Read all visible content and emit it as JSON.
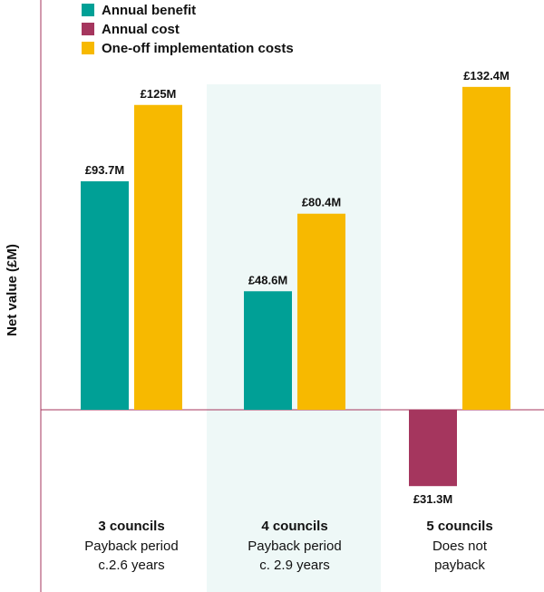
{
  "colors": {
    "annual_benefit": "#00a096",
    "annual_cost": "#a5365e",
    "one_off": "#f7b900",
    "highlight": "#eef8f7",
    "axis": "#a5365e"
  },
  "chart_data": {
    "type": "bar",
    "ylabel": "Net value (£M)",
    "ylim": [
      -60,
      150
    ],
    "grid": false,
    "legend_position": "top-left",
    "series": [
      {
        "name": "Annual benefit",
        "color_key": "annual_benefit"
      },
      {
        "name": "Annual cost",
        "color_key": "annual_cost"
      },
      {
        "name": "One-off implementation costs",
        "color_key": "one_off"
      }
    ],
    "groups": [
      {
        "title": "3 councils",
        "subtitle_lines": [
          "Payback period",
          "c.2.6 years"
        ],
        "highlighted": false,
        "bars": [
          {
            "series": 0,
            "value": 93.7,
            "label": "£93.7M"
          },
          {
            "series": 2,
            "value": 125,
            "label": "£125M"
          }
        ]
      },
      {
        "title": "4 councils",
        "subtitle_lines": [
          "Payback period",
          "c. 2.9 years"
        ],
        "highlighted": true,
        "bars": [
          {
            "series": 0,
            "value": 48.6,
            "label": "£48.6M"
          },
          {
            "series": 2,
            "value": 80.4,
            "label": "£80.4M"
          }
        ]
      },
      {
        "title": "5 councils",
        "subtitle_lines": [
          "Does not",
          "payback"
        ],
        "highlighted": false,
        "bars": [
          {
            "series": 1,
            "value": -31.3,
            "label": "£31.3M"
          },
          {
            "series": 2,
            "value": 132.4,
            "label": "£132.4M"
          }
        ]
      }
    ]
  }
}
